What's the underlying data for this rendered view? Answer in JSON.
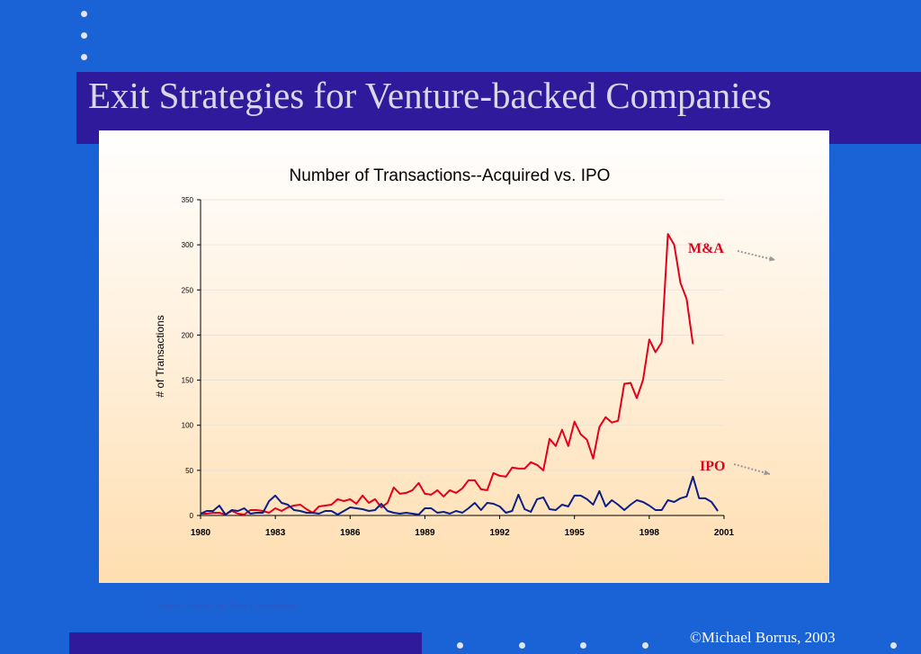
{
  "slide": {
    "title": "Exit Strategies for Venture-backed Companies",
    "source_note": "Source: Securities Data Corporation",
    "copyright": "©Michael Borrus, 2003"
  },
  "colors": {
    "background": "#1a63d6",
    "title_band": "#2f1a9c",
    "ma_line": "#e3001b",
    "ipo_line": "#0c1f86",
    "arrow": "#9a9a9a"
  },
  "chart_data": {
    "type": "line",
    "title": "Number of Transactions--Acquired vs. IPO",
    "xlabel": "",
    "ylabel": "# of Transactions",
    "ylim": [
      0,
      350
    ],
    "yticks": [
      0,
      50,
      100,
      150,
      200,
      250,
      300,
      350
    ],
    "xticks": [
      "1980",
      "1983",
      "1986",
      "1989",
      "1992",
      "1995",
      "1998",
      "2001"
    ],
    "xlim": [
      1980,
      2001
    ],
    "x_start": 1980,
    "x_step": 0.25,
    "grid": true,
    "annotations": [
      {
        "text": "M&A",
        "series": 0
      },
      {
        "text": "IPO",
        "series": 1
      }
    ],
    "series": [
      {
        "name": "M&A",
        "color": "#e3001b",
        "values": [
          2,
          2,
          3,
          3,
          1,
          5,
          2,
          1,
          6,
          6,
          5,
          3,
          8,
          5,
          9,
          11,
          12,
          7,
          3,
          10,
          11,
          12,
          18,
          16,
          18,
          13,
          22,
          14,
          18,
          9,
          14,
          31,
          24,
          25,
          28,
          36,
          24,
          23,
          28,
          21,
          28,
          25,
          30,
          39,
          39,
          29,
          28,
          47,
          44,
          43,
          53,
          52,
          52,
          59,
          56,
          50,
          85,
          77,
          95,
          77,
          104,
          90,
          84,
          63,
          98,
          109,
          103,
          105,
          146,
          147,
          130,
          150,
          195,
          181,
          192,
          312,
          300,
          258,
          240,
          190
        ]
      },
      {
        "name": "IPO",
        "color": "#0c1f86",
        "values": [
          2,
          5,
          5,
          11,
          1,
          6,
          5,
          8,
          2,
          3,
          3,
          16,
          22,
          14,
          12,
          6,
          5,
          3,
          3,
          2,
          5,
          5,
          1,
          5,
          9,
          8,
          7,
          5,
          6,
          13,
          5,
          3,
          2,
          3,
          2,
          1,
          8,
          8,
          3,
          4,
          2,
          5,
          3,
          8,
          14,
          6,
          14,
          13,
          10,
          3,
          5,
          23,
          7,
          4,
          18,
          20,
          7,
          6,
          12,
          10,
          22,
          22,
          18,
          12,
          27,
          10,
          17,
          12,
          6,
          12,
          17,
          15,
          11,
          6,
          6,
          17,
          15,
          19,
          21,
          43,
          19,
          19,
          15,
          5
        ]
      }
    ]
  }
}
